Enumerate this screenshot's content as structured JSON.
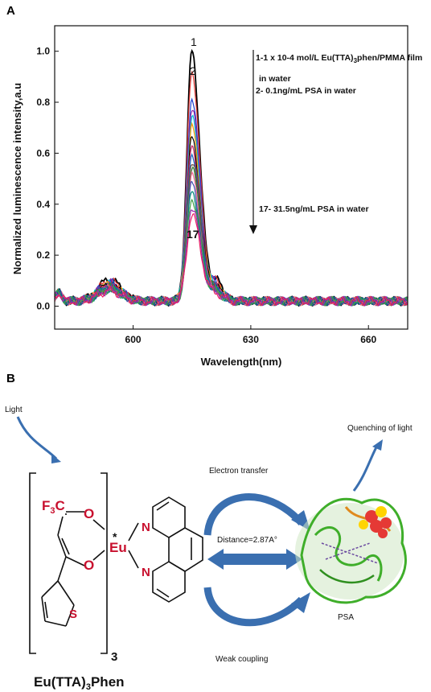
{
  "panels": {
    "a_label": "A",
    "b_label": "B"
  },
  "chart_data": {
    "type": "line",
    "title": "",
    "xlabel": "Wavelength(nm)",
    "ylabel": "Normalized luminescence intensity,a.u",
    "xlim": [
      580,
      670
    ],
    "ylim": [
      -0.09,
      1.1
    ],
    "xticks": [
      600,
      630,
      660
    ],
    "yticks": [
      0.0,
      0.2,
      0.4,
      0.6,
      0.8,
      1.0
    ],
    "tick_labels_x": [
      "600",
      "630",
      "660"
    ],
    "tick_labels_y": [
      "0.0",
      "0.2",
      "0.4",
      "0.6",
      "0.8",
      "1.0"
    ],
    "grid": false,
    "peak_wavelength": 615,
    "peak_values": [
      1.0,
      0.92,
      0.82,
      0.78,
      0.74,
      0.7,
      0.66,
      0.63,
      0.6,
      0.57,
      0.54,
      0.51,
      0.48,
      0.45,
      0.42,
      0.39,
      0.36
    ],
    "series_colors": [
      "#000000",
      "#e53935",
      "#1e3fd0",
      "#8e24aa",
      "#00bcd4",
      "#ff9800",
      "#000000",
      "#c2185b",
      "#1565c0",
      "#6d4c41",
      "#2e7d32",
      "#f06292",
      "#3949ab",
      "#00897b",
      "#43a047",
      "#9c27b0",
      "#e91e63"
    ],
    "annotations": {
      "line1": "1-1 x 10-4 mol/L Eu(TTA)",
      "line1_sub": "3",
      "line1_rest": "phen/PMMA film",
      "line1b": "in water",
      "line2": "2- 0.1ng/mL PSA in water",
      "line17": "17- 31.5ng/mL PSA in water",
      "label_1": "1",
      "label_2": "2",
      "label_17": "17"
    }
  },
  "diagram": {
    "light": "Light",
    "quenching": "Quenching of light",
    "electron_transfer": "Electron transfer",
    "distance": "Distance=2.87A°",
    "weak_coupling": "Weak coupling",
    "psa": "PSA",
    "cf3_f": "F",
    "cf3_sub": "3",
    "cf3_c": "C",
    "o_top": "O",
    "o_bottom": "O",
    "eu": "Eu",
    "eu_star": "*",
    "n_top": "N",
    "n_bottom": "N",
    "s": "S",
    "bracket_sub": "3",
    "compound": "Eu(TTA)",
    "compound_sub": "3",
    "compound_rest": "Phen",
    "accent_color": "#c8102e",
    "arrow_color": "#3a6fb0"
  }
}
